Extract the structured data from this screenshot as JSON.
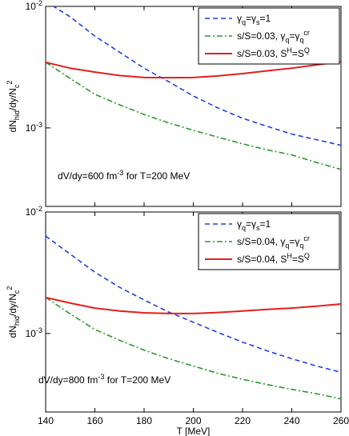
{
  "chart_data": [
    {
      "type": "line",
      "log_y": true,
      "ylabel": "dN_{hid}/dy/N_{c}^{2}",
      "annotation": "dV/dy=600 fm^{-3}  for T=200 MeV",
      "legend": "upper right",
      "x": [
        140,
        150,
        160,
        170,
        180,
        190,
        200,
        210,
        220,
        230,
        240,
        250,
        260
      ],
      "xlim": [
        140,
        260
      ],
      "xticks": [
        140,
        160,
        180,
        200,
        220,
        240,
        260
      ],
      "ylim": [
        0.000226,
        0.01
      ],
      "yticks": [
        {
          "value": 0.001,
          "label": "10^{-3}"
        },
        {
          "value": 0.01,
          "label": "10^{-2}"
        }
      ],
      "series": [
        {
          "name": "γ_{q}=γ_{s}=1",
          "color": "#2040e0",
          "dash": "dashed",
          "values": [
            0.011,
            0.0082,
            0.0057,
            0.0042,
            0.0031,
            0.0024,
            0.00183,
            0.00146,
            0.0012,
            0.00103,
            0.00089,
            0.0008,
            0.00072
          ]
        },
        {
          "name": "s/S=0.03, γ_{q}=γ_{q}^{cr}",
          "color": "#2a9a2a",
          "dash": "dashdot",
          "values": [
            0.00347,
            0.00255,
            0.00189,
            0.00155,
            0.00129,
            0.0011,
            0.000955,
            0.00084,
            0.00074,
            0.00066,
            0.0006,
            0.00052,
            0.000455
          ]
        },
        {
          "name": "s/S=0.03, S^{H}=S^{Q}",
          "color": "#e0201e",
          "dash": "solid",
          "values": [
            0.00347,
            0.0031,
            0.00288,
            0.0027,
            0.0026,
            0.00259,
            0.0026,
            0.00268,
            0.0028,
            0.00295,
            0.0031,
            0.0033,
            0.00351
          ]
        }
      ]
    },
    {
      "type": "line",
      "log_y": true,
      "ylabel": "dN_{hid}/dy/N_{c}^{2}",
      "xlabel": "T [MeV]",
      "annotation": "dV/dy=800 fm^{-3}  for T=200 MeV",
      "legend": "upper right",
      "x": [
        140,
        150,
        160,
        170,
        180,
        190,
        200,
        210,
        220,
        230,
        240,
        250,
        260
      ],
      "xlim": [
        140,
        260
      ],
      "xticks": [
        140,
        160,
        180,
        200,
        220,
        240,
        260
      ],
      "ylim": [
        0.000226,
        0.01
      ],
      "yticks": [
        {
          "value": 0.001,
          "label": "10^{-3}"
        },
        {
          "value": 0.01,
          "label": "10^{-2}"
        }
      ],
      "series": [
        {
          "name": "γ_{q}=γ_{s}=1",
          "color": "#2040e0",
          "dash": "dashed",
          "values": [
            0.00635,
            0.0045,
            0.0032,
            0.0024,
            0.00189,
            0.0015,
            0.00124,
            0.00102,
            0.00085,
            0.00072,
            0.00062,
            0.00054,
            0.00048
          ]
        },
        {
          "name": "s/S=0.04, γ_{q}=γ_{q}^{cr}",
          "color": "#2a9a2a",
          "dash": "dashdot",
          "values": [
            0.00198,
            0.00145,
            0.00108,
            0.00088,
            0.00073,
            0.00062,
            0.00054,
            0.00047,
            0.00042,
            0.00038,
            0.000347,
            0.00032,
            0.00029
          ]
        },
        {
          "name": "s/S=0.04, S^{H}=S^{Q}",
          "color": "#e0201e",
          "dash": "solid",
          "values": [
            0.00198,
            0.00178,
            0.00162,
            0.00153,
            0.00148,
            0.00146,
            0.00146,
            0.00149,
            0.00153,
            0.00158,
            0.00162,
            0.00168,
            0.00175
          ]
        }
      ]
    }
  ]
}
